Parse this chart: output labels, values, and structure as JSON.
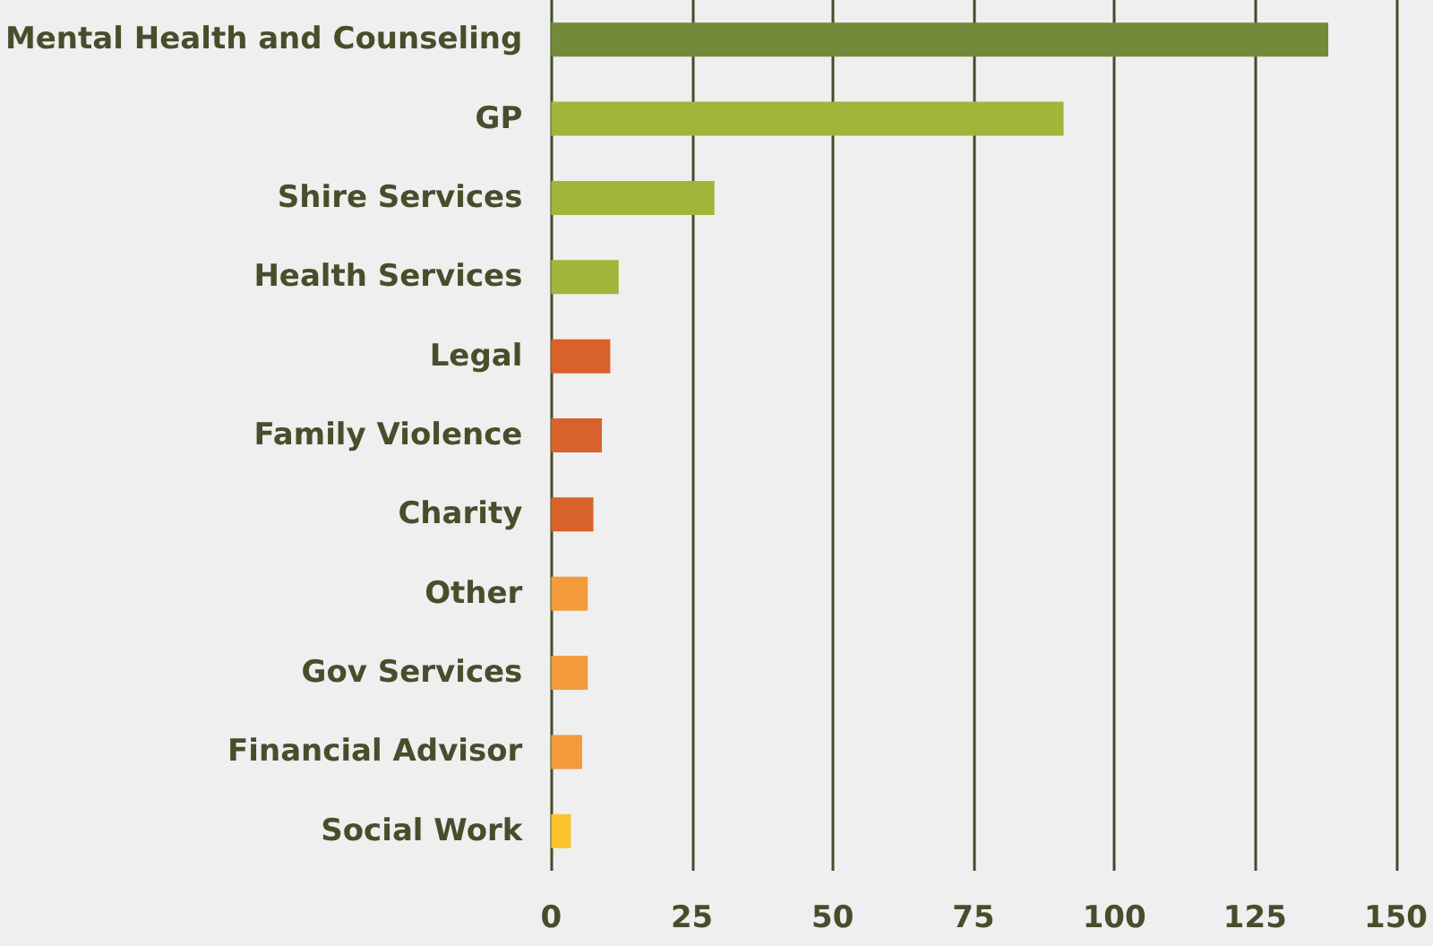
{
  "chart_data": {
    "type": "bar",
    "orientation": "horizontal",
    "categories": [
      "Mental Health and Counseling",
      "GP",
      "Shire Services",
      "Health Services",
      "Legal",
      "Family Violence",
      "Charity",
      "Other",
      "Gov Services",
      "Financial Advisor",
      "Social Work"
    ],
    "values": [
      138,
      91,
      29,
      12,
      10.5,
      9,
      7.5,
      6.5,
      6.5,
      5.5,
      3.5
    ],
    "colors": [
      "#738a3a",
      "#a3b43b",
      "#a3b43b",
      "#a3b43b",
      "#d9622a",
      "#d9622a",
      "#d9622a",
      "#f39a3b",
      "#f39a3b",
      "#f39a3b",
      "#fdc22e"
    ],
    "xlim": [
      0,
      150
    ],
    "xticks": [
      0,
      25,
      50,
      75,
      100,
      125,
      150
    ],
    "grid": "x"
  }
}
